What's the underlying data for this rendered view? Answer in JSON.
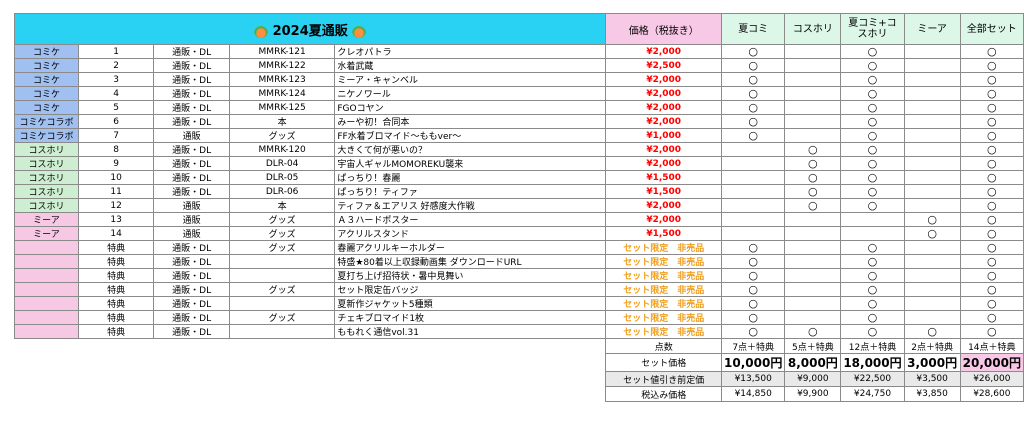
{
  "title": "2024夏通販",
  "title_icon": "watermelon-icon",
  "colors": {
    "accent_title": "#29d2f2",
    "price": "#ff0000",
    "limited": "#f0a020",
    "komike": "#9fc0f0",
    "kosuhori": "#cdeed0",
    "mia": "#f7c8e4"
  },
  "headers": {
    "price": "価格（税抜き）",
    "sets": [
      "夏コミ",
      "コスホリ",
      "夏コミ+コスホリ",
      "ミーア",
      "全部セット"
    ]
  },
  "mark": "○",
  "rows": [
    {
      "cat": "コミケ",
      "cat_cls": "komike",
      "no": "1",
      "ship": "通販・DL",
      "code": "MMRK-121",
      "name": "クレオパトラ",
      "price": "¥2,000",
      "limited": false,
      "marks": [
        "○",
        "",
        "○",
        "",
        "○"
      ]
    },
    {
      "cat": "コミケ",
      "cat_cls": "komike",
      "no": "2",
      "ship": "通販・DL",
      "code": "MMRK-122",
      "name": "水着武蔵",
      "price": "¥2,500",
      "limited": false,
      "marks": [
        "○",
        "",
        "○",
        "",
        "○"
      ]
    },
    {
      "cat": "コミケ",
      "cat_cls": "komike",
      "no": "3",
      "ship": "通販・DL",
      "code": "MMRK-123",
      "name": "ミーア・キャンベル",
      "price": "¥2,000",
      "limited": false,
      "marks": [
        "○",
        "",
        "○",
        "",
        "○"
      ]
    },
    {
      "cat": "コミケ",
      "cat_cls": "komike",
      "no": "4",
      "ship": "通販・DL",
      "code": "MMRK-124",
      "name": "ニケノワール",
      "price": "¥2,000",
      "limited": false,
      "marks": [
        "○",
        "",
        "○",
        "",
        "○"
      ]
    },
    {
      "cat": "コミケ",
      "cat_cls": "komike",
      "no": "5",
      "ship": "通販・DL",
      "code": "MMRK-125",
      "name": "FGOコヤン",
      "price": "¥2,000",
      "limited": false,
      "marks": [
        "○",
        "",
        "○",
        "",
        "○"
      ]
    },
    {
      "cat": "コミケコラボ",
      "cat_cls": "komike",
      "no": "6",
      "ship": "通販・DL",
      "code": "本",
      "name": "みーや初！合同本",
      "price": "¥2,000",
      "limited": false,
      "marks": [
        "○",
        "",
        "○",
        "",
        "○"
      ]
    },
    {
      "cat": "コミケコラボ",
      "cat_cls": "komike",
      "no": "7",
      "ship": "通販",
      "code": "グッズ",
      "name": "FF水着ブロマイド～ももver～",
      "price": "¥1,000",
      "limited": false,
      "marks": [
        "○",
        "",
        "○",
        "",
        "○"
      ]
    },
    {
      "cat": "コスホリ",
      "cat_cls": "kosuhori",
      "no": "8",
      "ship": "通販・DL",
      "code": "MMRK-120",
      "name": "大きくて何が悪いの？",
      "price": "¥2,000",
      "limited": false,
      "marks": [
        "",
        "○",
        "○",
        "",
        "○"
      ]
    },
    {
      "cat": "コスホリ",
      "cat_cls": "kosuhori",
      "no": "9",
      "ship": "通販・DL",
      "code": "DLR-04",
      "name": "宇宙人ギャルMOMOREKU襲来",
      "price": "¥2,000",
      "limited": false,
      "marks": [
        "",
        "○",
        "○",
        "",
        "○"
      ]
    },
    {
      "cat": "コスホリ",
      "cat_cls": "kosuhori",
      "no": "10",
      "ship": "通販・DL",
      "code": "DLR-05",
      "name": "ぱっちり！春麗",
      "price": "¥1,500",
      "limited": false,
      "marks": [
        "",
        "○",
        "○",
        "",
        "○"
      ]
    },
    {
      "cat": "コスホリ",
      "cat_cls": "kosuhori",
      "no": "11",
      "ship": "通販・DL",
      "code": "DLR-06",
      "name": "ぱっちり！ティファ",
      "price": "¥1,500",
      "limited": false,
      "marks": [
        "",
        "○",
        "○",
        "",
        "○"
      ]
    },
    {
      "cat": "コスホリ",
      "cat_cls": "kosuhori",
      "no": "12",
      "ship": "通販",
      "code": "本",
      "name": "ティファ＆エアリス 好感度大作戦",
      "price": "¥2,000",
      "limited": false,
      "marks": [
        "",
        "○",
        "○",
        "",
        "○"
      ]
    },
    {
      "cat": "ミーア",
      "cat_cls": "mia",
      "no": "13",
      "ship": "通販",
      "code": "グッズ",
      "name": "Ａ３ハードポスター",
      "price": "¥2,000",
      "limited": false,
      "marks": [
        "",
        "",
        "",
        "○",
        "○"
      ]
    },
    {
      "cat": "ミーア",
      "cat_cls": "mia",
      "no": "14",
      "ship": "通販",
      "code": "グッズ",
      "name": "アクリルスタンド",
      "price": "¥1,500",
      "limited": false,
      "marks": [
        "",
        "",
        "",
        "○",
        "○"
      ]
    },
    {
      "cat": "",
      "cat_cls": "mia",
      "no": "特典",
      "ship": "通販・DL",
      "code": "グッズ",
      "name": "春麗アクリルキーホルダー",
      "price": "セット限定　非売品",
      "limited": true,
      "marks": [
        "○",
        "",
        "○",
        "",
        "○"
      ]
    },
    {
      "cat": "",
      "cat_cls": "mia",
      "no": "特典",
      "ship": "通販・DL",
      "code": "",
      "name": "特盛★80着以上収録動画集 ダウンロードURL",
      "price": "セット限定　非売品",
      "limited": true,
      "marks": [
        "○",
        "",
        "○",
        "",
        "○"
      ]
    },
    {
      "cat": "",
      "cat_cls": "mia",
      "no": "特典",
      "ship": "通販・DL",
      "code": "",
      "name": "夏打ち上げ招待状・暑中見舞い",
      "price": "セット限定　非売品",
      "limited": true,
      "marks": [
        "○",
        "",
        "○",
        "",
        "○"
      ]
    },
    {
      "cat": "",
      "cat_cls": "mia",
      "no": "特典",
      "ship": "通販・DL",
      "code": "グッズ",
      "name": "セット限定缶バッジ",
      "price": "セット限定　非売品",
      "limited": true,
      "marks": [
        "○",
        "",
        "○",
        "",
        "○"
      ]
    },
    {
      "cat": "",
      "cat_cls": "mia",
      "no": "特典",
      "ship": "通販・DL",
      "code": "",
      "name": "夏新作ジャケット5種類",
      "price": "セット限定　非売品",
      "limited": true,
      "marks": [
        "○",
        "",
        "○",
        "",
        "○"
      ]
    },
    {
      "cat": "",
      "cat_cls": "mia",
      "no": "特典",
      "ship": "通販・DL",
      "code": "グッズ",
      "name": "チェキブロマイド1枚",
      "price": "セット限定　非売品",
      "limited": true,
      "marks": [
        "○",
        "",
        "○",
        "",
        "○"
      ]
    },
    {
      "cat": "",
      "cat_cls": "mia",
      "no": "特典",
      "ship": "通販・DL",
      "code": "",
      "name": "ももれく通信vol.31",
      "price": "セット限定　非売品",
      "limited": true,
      "marks": [
        "○",
        "○",
        "○",
        "○",
        "○"
      ]
    }
  ],
  "footer": {
    "count_label": "点数",
    "counts": [
      "7点＋特典",
      "5点＋特典",
      "12点＋特典",
      "2点＋特典",
      "14点＋特典"
    ],
    "set_label": "セット価格",
    "set_prices": [
      "10,000円",
      "8,000円",
      "18,000円",
      "3,000円",
      "20,000円"
    ],
    "before_label": "セット値引き前定価",
    "before_prices": [
      "¥13,500",
      "¥9,000",
      "¥22,500",
      "¥3,500",
      "¥26,000"
    ],
    "tax_label": "税込み価格",
    "tax_prices": [
      "¥14,850",
      "¥9,900",
      "¥24,750",
      "¥3,850",
      "¥28,600"
    ]
  }
}
